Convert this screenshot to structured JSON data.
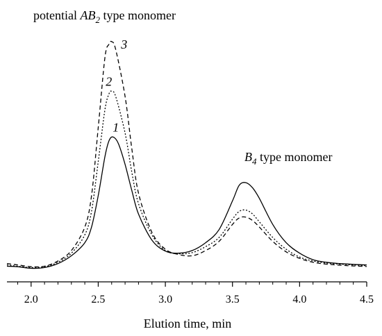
{
  "chart_data": {
    "type": "line",
    "title": "",
    "xlabel": "Elution time, min",
    "ylabel": "",
    "xlim": [
      1.82,
      4.5
    ],
    "ylim": [
      0,
      1.0
    ],
    "x_ticks": [
      2.0,
      2.5,
      3.0,
      3.5,
      4.0,
      4.5
    ],
    "x_tick_labels": [
      "2.0",
      "2.5",
      "3.0",
      "3.5",
      "4.0",
      "4.5"
    ],
    "y_axis_visible": false,
    "grid": false,
    "series": [
      {
        "label": "1",
        "style": "solid",
        "points": [
          [
            1.82,
            0.02
          ],
          [
            1.9,
            0.018
          ],
          [
            2.0,
            0.012
          ],
          [
            2.1,
            0.015
          ],
          [
            2.2,
            0.03
          ],
          [
            2.3,
            0.06
          ],
          [
            2.4,
            0.11
          ],
          [
            2.45,
            0.17
          ],
          [
            2.5,
            0.29
          ],
          [
            2.55,
            0.44
          ],
          [
            2.58,
            0.5
          ],
          [
            2.61,
            0.515
          ],
          [
            2.65,
            0.49
          ],
          [
            2.7,
            0.41
          ],
          [
            2.75,
            0.31
          ],
          [
            2.8,
            0.22
          ],
          [
            2.9,
            0.12
          ],
          [
            3.0,
            0.078
          ],
          [
            3.1,
            0.07
          ],
          [
            3.2,
            0.08
          ],
          [
            3.3,
            0.11
          ],
          [
            3.4,
            0.16
          ],
          [
            3.5,
            0.27
          ],
          [
            3.55,
            0.33
          ],
          [
            3.6,
            0.34
          ],
          [
            3.65,
            0.32
          ],
          [
            3.7,
            0.28
          ],
          [
            3.8,
            0.18
          ],
          [
            3.9,
            0.11
          ],
          [
            4.0,
            0.07
          ],
          [
            4.1,
            0.045
          ],
          [
            4.2,
            0.035
          ],
          [
            4.3,
            0.03
          ],
          [
            4.4,
            0.027
          ],
          [
            4.5,
            0.025
          ]
        ]
      },
      {
        "label": "2",
        "style": "dotted",
        "points": [
          [
            1.82,
            0.025
          ],
          [
            1.9,
            0.02
          ],
          [
            2.0,
            0.015
          ],
          [
            2.1,
            0.018
          ],
          [
            2.2,
            0.035
          ],
          [
            2.3,
            0.07
          ],
          [
            2.4,
            0.14
          ],
          [
            2.45,
            0.23
          ],
          [
            2.5,
            0.42
          ],
          [
            2.55,
            0.62
          ],
          [
            2.58,
            0.68
          ],
          [
            2.6,
            0.69
          ],
          [
            2.63,
            0.67
          ],
          [
            2.7,
            0.53
          ],
          [
            2.75,
            0.38
          ],
          [
            2.8,
            0.26
          ],
          [
            2.9,
            0.14
          ],
          [
            3.0,
            0.08
          ],
          [
            3.1,
            0.068
          ],
          [
            3.2,
            0.072
          ],
          [
            3.3,
            0.095
          ],
          [
            3.4,
            0.13
          ],
          [
            3.5,
            0.2
          ],
          [
            3.55,
            0.23
          ],
          [
            3.6,
            0.235
          ],
          [
            3.65,
            0.22
          ],
          [
            3.7,
            0.19
          ],
          [
            3.8,
            0.13
          ],
          [
            3.9,
            0.085
          ],
          [
            4.0,
            0.055
          ],
          [
            4.1,
            0.04
          ],
          [
            4.2,
            0.032
          ],
          [
            4.3,
            0.028
          ],
          [
            4.4,
            0.025
          ],
          [
            4.5,
            0.022
          ]
        ]
      },
      {
        "label": "3",
        "style": "dashed",
        "points": [
          [
            1.82,
            0.03
          ],
          [
            1.9,
            0.025
          ],
          [
            2.0,
            0.018
          ],
          [
            2.1,
            0.02
          ],
          [
            2.2,
            0.04
          ],
          [
            2.3,
            0.08
          ],
          [
            2.4,
            0.17
          ],
          [
            2.45,
            0.29
          ],
          [
            2.5,
            0.55
          ],
          [
            2.55,
            0.82
          ],
          [
            2.58,
            0.87
          ],
          [
            2.6,
            0.88
          ],
          [
            2.63,
            0.85
          ],
          [
            2.7,
            0.67
          ],
          [
            2.75,
            0.47
          ],
          [
            2.8,
            0.3
          ],
          [
            2.9,
            0.15
          ],
          [
            3.0,
            0.085
          ],
          [
            3.1,
            0.065
          ],
          [
            3.2,
            0.06
          ],
          [
            3.3,
            0.08
          ],
          [
            3.4,
            0.115
          ],
          [
            3.5,
            0.18
          ],
          [
            3.55,
            0.205
          ],
          [
            3.6,
            0.208
          ],
          [
            3.65,
            0.195
          ],
          [
            3.7,
            0.17
          ],
          [
            3.8,
            0.115
          ],
          [
            3.9,
            0.075
          ],
          [
            4.0,
            0.05
          ],
          [
            4.1,
            0.035
          ],
          [
            4.2,
            0.028
          ],
          [
            4.3,
            0.024
          ],
          [
            4.4,
            0.021
          ],
          [
            4.5,
            0.019
          ]
        ]
      }
    ],
    "annotations": [
      {
        "prefix": "potential ",
        "formula": "AB",
        "sub": "2",
        "suffix": " type monomer"
      },
      {
        "prefix": "",
        "formula": "B",
        "sub": "4",
        "suffix": " type monomer"
      }
    ]
  }
}
